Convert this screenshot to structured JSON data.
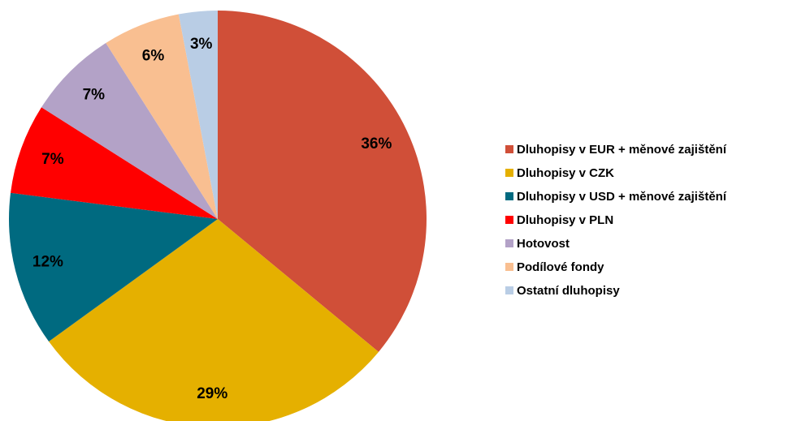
{
  "chart_data": {
    "type": "pie",
    "categories": [
      "Dluhopisy v EUR + měnové zajištění",
      "Dluhopisy v CZK",
      "Dluhopisy v USD + měnové zajištění",
      "Dluhopisy v PLN",
      "Hotovost",
      "Podílové fondy",
      "Ostatní dluhopisy"
    ],
    "values": [
      36,
      29,
      12,
      7,
      7,
      6,
      3
    ],
    "value_labels": [
      "36%",
      "29%",
      "12%",
      "7%",
      "7%",
      "6%",
      "3%"
    ],
    "colors": [
      "#d04f38",
      "#e5b000",
      "#006a80",
      "#ff0000",
      "#b3a2c7",
      "#f9bf91",
      "#b9cde5"
    ],
    "legend": "right"
  }
}
